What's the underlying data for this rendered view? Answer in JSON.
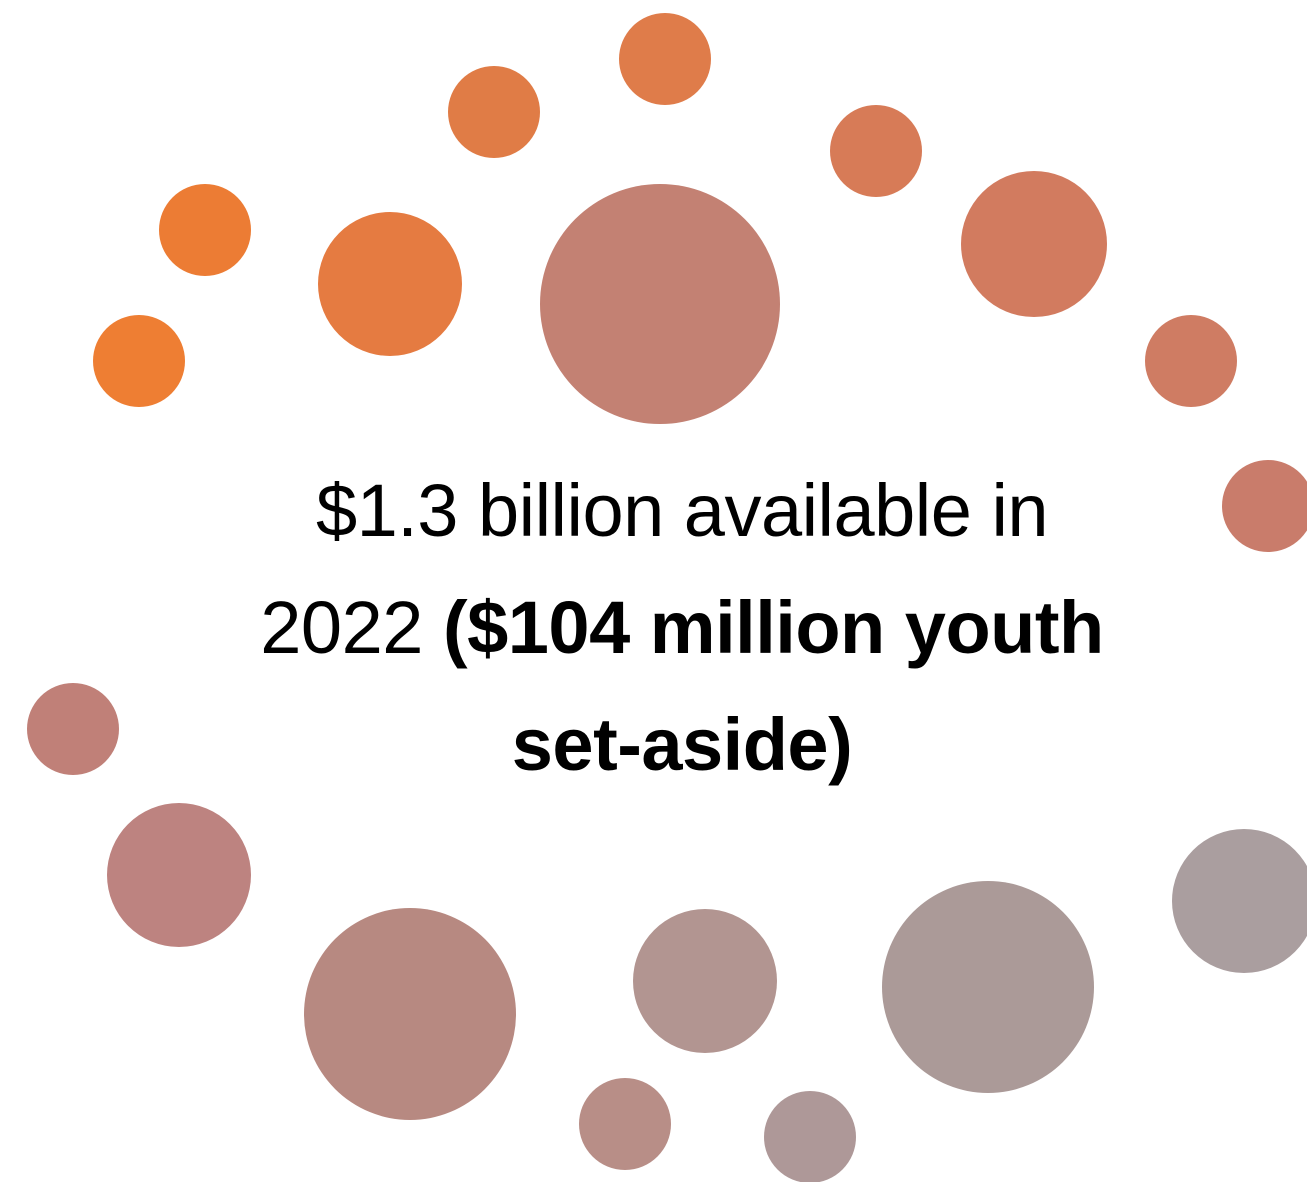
{
  "headline": {
    "line1": "$1.3 billion available in",
    "line2_regular": "2022 ",
    "line2_bold": "($104 million youth",
    "line3_bold": "set-aside)"
  },
  "palette": {
    "orange": "#ec7c34",
    "orange_mid": "#df7c4a",
    "coral": "#d27b5f",
    "dusty_rose": "#c38173",
    "mauve": "#b8897f",
    "gray_rose": "#ab9a98"
  }
}
